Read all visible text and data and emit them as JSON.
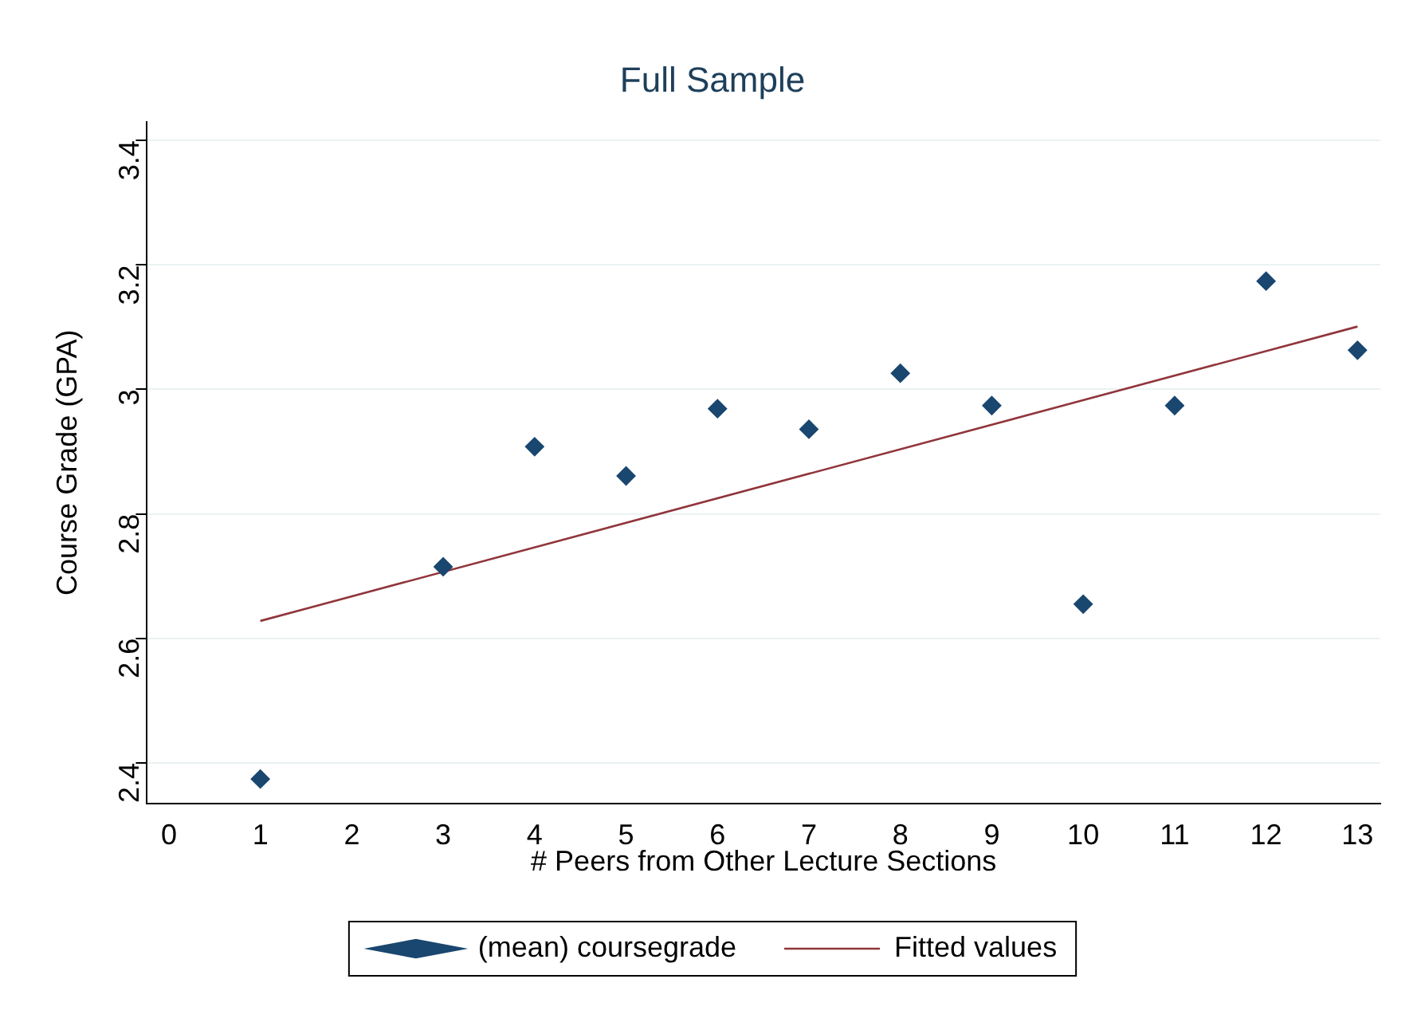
{
  "chart_data": {
    "type": "scatter",
    "title": "Full Sample",
    "xlabel": "# Peers from Other Lecture Sections",
    "ylabel": "Course Grade (GPA)",
    "x": [
      1,
      3,
      4,
      5,
      6,
      7,
      8,
      9,
      10,
      11,
      12,
      13
    ],
    "series": [
      {
        "name": "(mean) coursegrade",
        "color": "#1a476f",
        "marker": "diamond",
        "values": [
          2.374,
          2.715,
          2.908,
          2.861,
          2.969,
          2.936,
          3.026,
          2.974,
          2.655,
          2.974,
          3.174,
          3.063
        ]
      },
      {
        "name": "Fitted values",
        "type": "line",
        "color": "#90353b",
        "marker": "none",
        "line_style": "solid",
        "x": [
          1,
          13
        ],
        "values": [
          2.628,
          3.101
        ]
      }
    ],
    "xlim": [
      -0.24,
      13.25
    ],
    "xticks": [
      0,
      1,
      2,
      3,
      4,
      5,
      6,
      7,
      8,
      9,
      10,
      11,
      12,
      13
    ],
    "ylim": [
      2.335,
      3.43
    ],
    "yticks": [
      2.4,
      2.6,
      2.8,
      3,
      3.2,
      3.4
    ],
    "grid": "y",
    "legend": "bottom"
  }
}
